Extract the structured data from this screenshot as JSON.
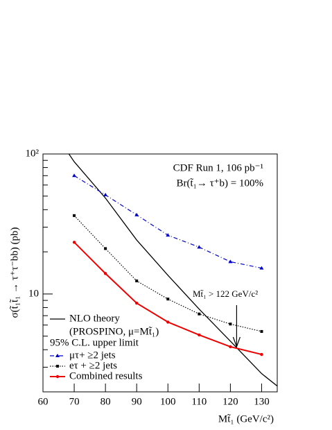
{
  "chart_data": {
    "type": "line",
    "ylabel": "σ(t̃₁t̃₁ → τ⁺τ⁻bb) (pb)",
    "xlabel": "Mt̃₁ (GeV/c²)",
    "annotations": [
      "CDF Run 1, 106 pb⁻¹",
      "Br(t̃₁→ τ⁺b) = 100%"
    ],
    "limit_annotation": {
      "text": "Mt̃₁ > 122 GeV/c²",
      "x": 122
    },
    "legend_header": "95% C.L. upper limit",
    "xlim": [
      60,
      135
    ],
    "ylim": [
      2,
      100
    ],
    "log_y": true,
    "xticks": [
      60,
      70,
      80,
      90,
      100,
      110,
      120,
      130
    ],
    "yticks": [
      10,
      {
        "value": 100,
        "label": "10²"
      }
    ],
    "yminorticks": [
      3,
      4,
      5,
      6,
      7,
      8,
      9,
      20,
      30,
      40,
      50,
      60,
      70,
      80,
      90
    ],
    "theory": {
      "name": "NLO theory",
      "note": "(PROSPINO, μ=Mt̃₁)",
      "color": "#000000",
      "x": [
        68.3,
        70,
        80,
        90,
        100,
        110,
        120,
        130,
        135
      ],
      "values": [
        100,
        88,
        48.4,
        24.3,
        13.6,
        7.8,
        4.6,
        2.7,
        2.2
      ]
    },
    "x": [
      70,
      80,
      90,
      100,
      110,
      120,
      130
    ],
    "series": [
      {
        "name": "μτ+ ≥2 jets",
        "color": "#0000cc",
        "values": [
          70,
          51,
          36.7,
          26.3,
          21.6,
          17,
          15.3
        ]
      },
      {
        "name": "eτ + ≥2 jets",
        "color": "#000000",
        "values": [
          36.3,
          21.1,
          12.4,
          9.2,
          7.2,
          6.1,
          5.4
        ]
      },
      {
        "name": "Combined results",
        "color": "#ee0000",
        "values": [
          23.4,
          14,
          8.6,
          6.3,
          5.1,
          4.2,
          3.7
        ]
      }
    ]
  }
}
